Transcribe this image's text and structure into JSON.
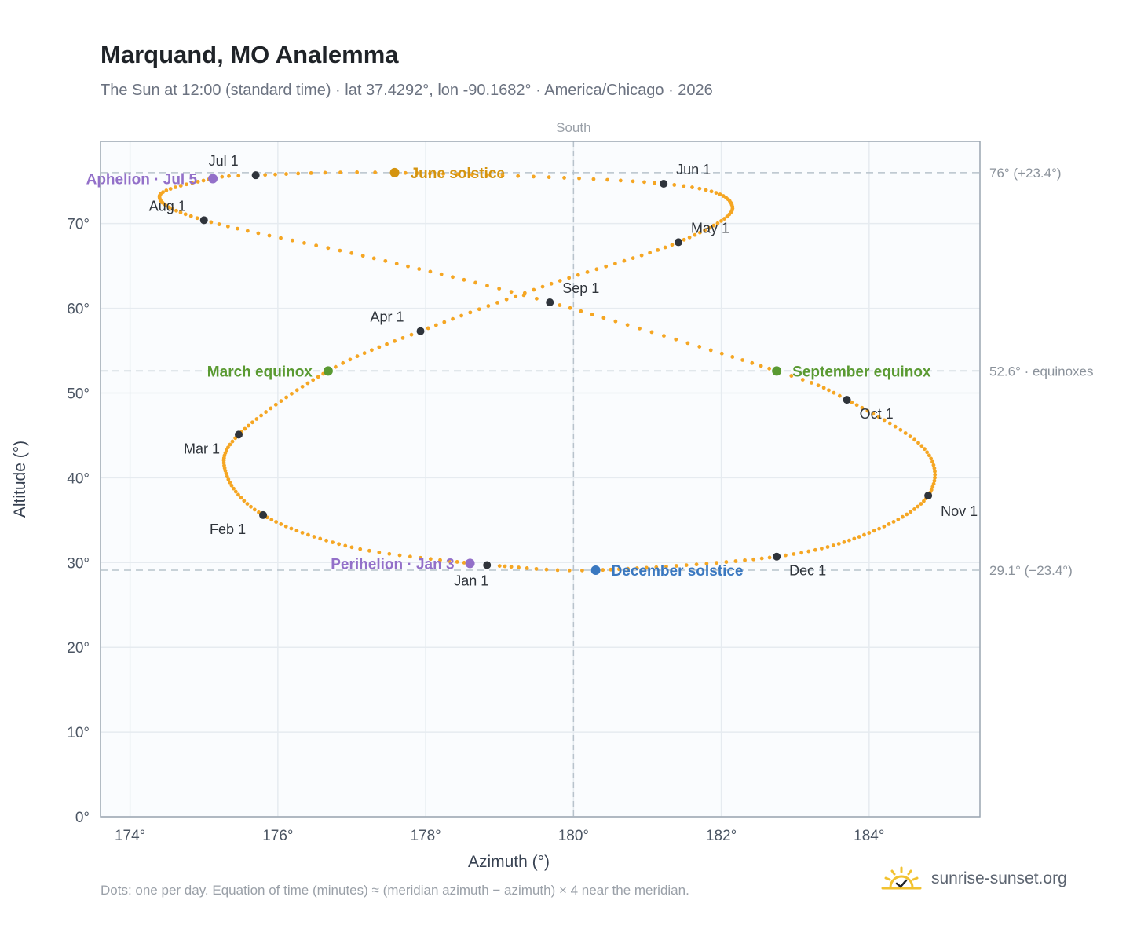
{
  "header": {
    "title": "Marquand, MO Analemma",
    "subtitle": "The Sun at 12:00 (standard time) · lat 37.4292°, lon -90.1682° · America/Chicago · 2026"
  },
  "footer": {
    "note": "Dots: one per day. Equation of time (minutes) ≈ (meridian azimuth − azimuth) × 4 near the meridian.",
    "brand": "sunrise-sunset.org"
  },
  "colors": {
    "path": "#f5a623",
    "month_marker": "#2f343b",
    "june_solstice": "#d4940f",
    "december_solstice": "#3a78c0",
    "equinox": "#5a9a32",
    "apsis": "#9370c9",
    "reference_line": "#b8c3cc",
    "plot_bg": "#fafcfe",
    "grid": "#e6ebf0"
  },
  "chart_data": {
    "type": "scatter",
    "xlabel": "Azimuth (°)",
    "ylabel": "Altitude (°)",
    "xlim": [
      173.6,
      185.5
    ],
    "ylim": [
      0,
      79.7
    ],
    "x_ticks": [
      174,
      176,
      178,
      180,
      182,
      184
    ],
    "x_tick_labels": [
      "174°",
      "176°",
      "178°",
      "180°",
      "182°",
      "184°"
    ],
    "y_ticks": [
      0,
      10,
      20,
      30,
      40,
      50,
      60,
      70
    ],
    "y_tick_labels": [
      "0°",
      "10°",
      "20°",
      "30°",
      "40°",
      "50°",
      "60°",
      "70°"
    ],
    "grid": true,
    "meridian": {
      "x": 180,
      "label": "South"
    },
    "reference_lines": [
      {
        "y": 76.0,
        "label": "76° (+23.4°)"
      },
      {
        "y": 52.6,
        "label": "52.6° · equinoxes"
      },
      {
        "y": 29.1,
        "label": "29.1° (−23.4°)"
      }
    ],
    "month_markers": [
      {
        "label": "Jan 1",
        "az": 178.83,
        "alt": 29.7
      },
      {
        "label": "Feb 1",
        "az": 175.8,
        "alt": 35.6
      },
      {
        "label": "Mar 1",
        "az": 175.47,
        "alt": 45.1
      },
      {
        "label": "Apr 1",
        "az": 177.93,
        "alt": 57.3
      },
      {
        "label": "May 1",
        "az": 181.42,
        "alt": 67.8
      },
      {
        "label": "Jun 1",
        "az": 181.22,
        "alt": 74.7
      },
      {
        "label": "Jul 1",
        "az": 175.7,
        "alt": 75.7
      },
      {
        "label": "Aug 1",
        "az": 175.0,
        "alt": 70.4
      },
      {
        "label": "Sep 1",
        "az": 179.68,
        "alt": 60.7
      },
      {
        "label": "Oct 1",
        "az": 183.7,
        "alt": 49.2
      },
      {
        "label": "Nov 1",
        "az": 184.8,
        "alt": 37.9
      },
      {
        "label": "Dec 1",
        "az": 182.75,
        "alt": 30.7
      }
    ],
    "events": [
      {
        "label": "June solstice",
        "az": 177.58,
        "alt": 76.0,
        "kind": "june_solstice"
      },
      {
        "label": "December solstice",
        "az": 180.3,
        "alt": 29.1,
        "kind": "december_solstice"
      },
      {
        "label": "March equinox",
        "az": 176.68,
        "alt": 52.6,
        "kind": "equinox"
      },
      {
        "label": "September equinox",
        "az": 182.75,
        "alt": 52.6,
        "kind": "equinox"
      },
      {
        "label": "Aphelion · Jul 5",
        "az": 175.12,
        "alt": 75.3,
        "kind": "apsis"
      },
      {
        "label": "Perihelion · Jan 3",
        "az": 178.6,
        "alt": 29.9,
        "kind": "apsis"
      }
    ],
    "path_keypoints": [
      {
        "day": 1,
        "az": 178.83,
        "alt": 29.7
      },
      {
        "day": 3,
        "az": 178.6,
        "alt": 29.9
      },
      {
        "day": 16,
        "az": 177.0,
        "alt": 31.8
      },
      {
        "day": 32,
        "az": 175.8,
        "alt": 35.6
      },
      {
        "day": 46,
        "az": 175.3,
        "alt": 40.5
      },
      {
        "day": 60,
        "az": 175.47,
        "alt": 45.1
      },
      {
        "day": 79,
        "az": 176.68,
        "alt": 52.6
      },
      {
        "day": 91,
        "az": 177.93,
        "alt": 57.3
      },
      {
        "day": 106,
        "az": 179.7,
        "alt": 62.9
      },
      {
        "day": 121,
        "az": 181.42,
        "alt": 67.8
      },
      {
        "day": 137,
        "az": 182.15,
        "alt": 72.0
      },
      {
        "day": 152,
        "az": 181.22,
        "alt": 74.7
      },
      {
        "day": 172,
        "az": 177.58,
        "alt": 76.0
      },
      {
        "day": 182,
        "az": 175.7,
        "alt": 75.7
      },
      {
        "day": 186,
        "az": 175.12,
        "alt": 75.3
      },
      {
        "day": 198,
        "az": 174.4,
        "alt": 73.3
      },
      {
        "day": 213,
        "az": 175.0,
        "alt": 70.4
      },
      {
        "day": 229,
        "az": 177.3,
        "alt": 65.9
      },
      {
        "day": 244,
        "az": 179.68,
        "alt": 60.7
      },
      {
        "day": 265,
        "az": 182.75,
        "alt": 52.6
      },
      {
        "day": 274,
        "az": 183.7,
        "alt": 49.2
      },
      {
        "day": 290,
        "az": 184.75,
        "alt": 43.4
      },
      {
        "day": 305,
        "az": 184.8,
        "alt": 37.9
      },
      {
        "day": 320,
        "az": 184.0,
        "alt": 33.5
      },
      {
        "day": 335,
        "az": 182.75,
        "alt": 30.7
      },
      {
        "day": 355,
        "az": 180.3,
        "alt": 29.1
      },
      {
        "day": 365,
        "az": 179.0,
        "alt": 29.6
      }
    ]
  }
}
